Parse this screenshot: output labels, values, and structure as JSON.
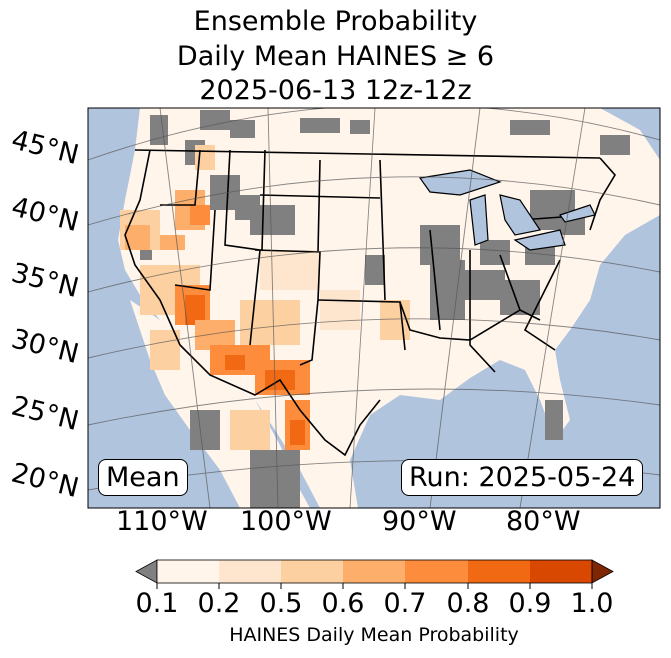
{
  "title": {
    "line1": "Ensemble Probability",
    "line2": "Daily Mean HAINES ≥ 6",
    "line3": "2025-06-13 12z-12z"
  },
  "map": {
    "latitude_labels": [
      "45°N",
      "40°N",
      "35°N",
      "30°N",
      "25°N",
      "20°N"
    ],
    "longitude_labels": [
      "110°W",
      "100°W",
      "90°W",
      "80°W"
    ],
    "statistic_label": "Mean",
    "run_label": "Run: 2025-05-24",
    "colors": {
      "ocean": "#b0c4de",
      "land_low": "#fff5eb",
      "no_data": "#808080",
      "border": "#000000",
      "gridline": "#555555"
    }
  },
  "colorbar": {
    "tick_labels": [
      "0.1",
      "0.2",
      "0.5",
      "0.6",
      "0.7",
      "0.8",
      "0.9",
      "1.0"
    ],
    "label": "HAINES Daily Mean Probability",
    "colors": [
      "#fff5eb",
      "#fee6ce",
      "#fdd0a2",
      "#fdae6b",
      "#fd8d3c",
      "#f16913",
      "#d94801",
      "#a63603"
    ],
    "under_color": "#808080",
    "over_color": "#7f2704"
  }
}
